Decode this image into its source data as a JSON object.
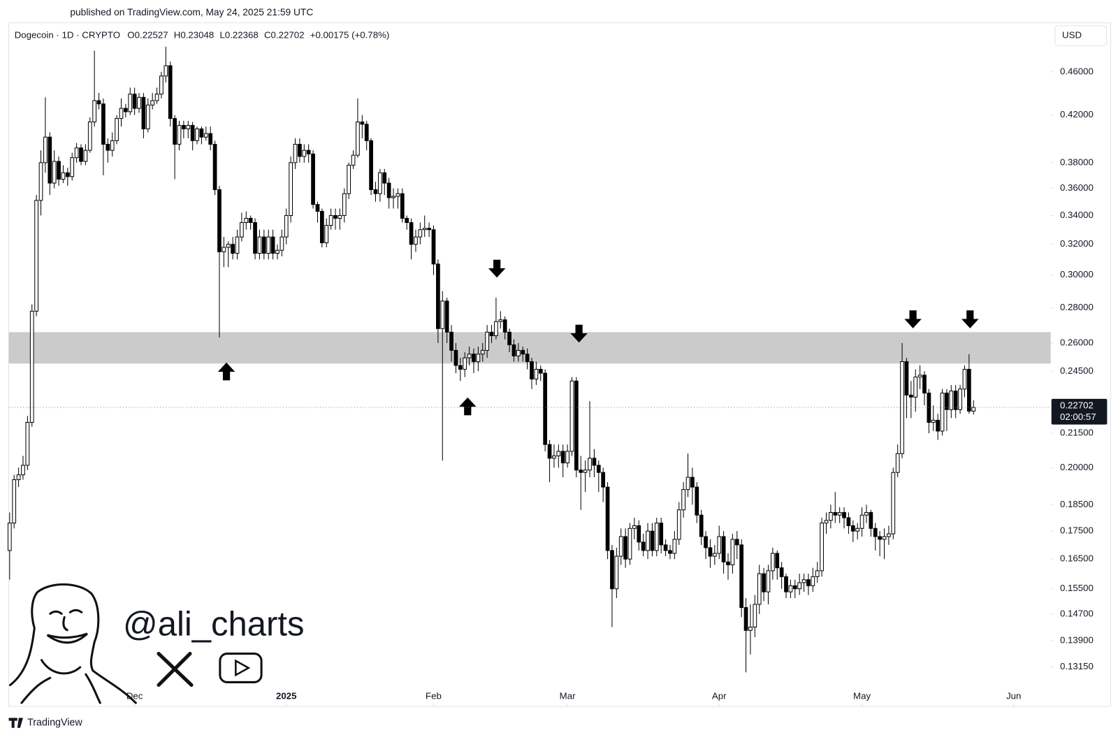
{
  "header": {
    "published": "published on TradingView.com, May 24, 2025 21:59 UTC"
  },
  "branding": {
    "logo_text": "TradingView",
    "watermark": "@ali_charts"
  },
  "chart_data": {
    "type": "candlestick",
    "title": "Dogecoin · 1D · CRYPTO",
    "ohlc_labels": [
      "O0.22527",
      "H0.23048",
      "L0.22368",
      "C0.22702",
      "+0.00175 (+0.78%)"
    ],
    "currency": "USD",
    "last_price_label": "0.22702",
    "countdown": "02:00:57",
    "log_scale": true,
    "grid": false,
    "up_color": "#ffffff",
    "down_color": "#000000",
    "zone_color": "#c8c8c8",
    "zone": {
      "low": 0.249,
      "high": 0.266
    },
    "xlim": [
      -0.2,
      233.3
    ],
    "xticks": [
      {
        "value": 28,
        "label": "Dec"
      },
      {
        "value": 62,
        "label": "2025"
      },
      {
        "value": 95,
        "label": "Feb"
      },
      {
        "value": 125,
        "label": "Mar"
      },
      {
        "value": 159,
        "label": "Apr"
      },
      {
        "value": 191,
        "label": "May"
      },
      {
        "value": 225,
        "label": "Jun"
      }
    ],
    "ylim": [
      0.121,
      0.51
    ],
    "yticks": [
      {
        "value": 0.46,
        "label": "0.46000"
      },
      {
        "value": 0.42,
        "label": "0.42000"
      },
      {
        "value": 0.38,
        "label": "0.38000"
      },
      {
        "value": 0.36,
        "label": "0.36000"
      },
      {
        "value": 0.34,
        "label": "0.34000"
      },
      {
        "value": 0.32,
        "label": "0.32000"
      },
      {
        "value": 0.3,
        "label": "0.30000"
      },
      {
        "value": 0.28,
        "label": "0.28000"
      },
      {
        "value": 0.26,
        "label": "0.26000"
      },
      {
        "value": 0.245,
        "label": "0.24500"
      },
      {
        "value": 0.215,
        "label": "0.21500"
      },
      {
        "value": 0.2,
        "label": "0.20000"
      },
      {
        "value": 0.185,
        "label": "0.18500"
      },
      {
        "value": 0.175,
        "label": "0.17500"
      },
      {
        "value": 0.165,
        "label": "0.16500"
      },
      {
        "value": 0.155,
        "label": "0.15500"
      },
      {
        "value": 0.147,
        "label": "0.14700"
      },
      {
        "value": 0.139,
        "label": "0.13900"
      },
      {
        "value": 0.1315,
        "label": "0.13150"
      }
    ],
    "ohlc": [
      [
        0.168,
        0.182,
        0.158,
        0.178
      ],
      [
        0.178,
        0.197,
        0.176,
        0.195
      ],
      [
        0.195,
        0.2,
        0.192,
        0.197
      ],
      [
        0.197,
        0.205,
        0.195,
        0.201
      ],
      [
        0.201,
        0.223,
        0.199,
        0.22
      ],
      [
        0.22,
        0.282,
        0.218,
        0.278
      ],
      [
        0.278,
        0.355,
        0.275,
        0.351
      ],
      [
        0.351,
        0.39,
        0.34,
        0.38
      ],
      [
        0.38,
        0.436,
        0.372,
        0.401
      ],
      [
        0.401,
        0.405,
        0.355,
        0.364
      ],
      [
        0.364,
        0.39,
        0.36,
        0.381
      ],
      [
        0.381,
        0.385,
        0.362,
        0.367
      ],
      [
        0.367,
        0.378,
        0.364,
        0.372
      ],
      [
        0.372,
        0.376,
        0.362,
        0.369
      ],
      [
        0.369,
        0.388,
        0.366,
        0.384
      ],
      [
        0.384,
        0.396,
        0.38,
        0.392
      ],
      [
        0.392,
        0.395,
        0.378,
        0.381
      ],
      [
        0.381,
        0.395,
        0.378,
        0.39
      ],
      [
        0.39,
        0.418,
        0.388,
        0.414
      ],
      [
        0.414,
        0.481,
        0.41,
        0.433
      ],
      [
        0.433,
        0.44,
        0.425,
        0.43
      ],
      [
        0.43,
        0.435,
        0.37,
        0.395
      ],
      [
        0.395,
        0.4,
        0.38,
        0.39
      ],
      [
        0.39,
        0.405,
        0.385,
        0.398
      ],
      [
        0.398,
        0.42,
        0.395,
        0.417
      ],
      [
        0.417,
        0.435,
        0.41,
        0.426
      ],
      [
        0.426,
        0.43,
        0.418,
        0.423
      ],
      [
        0.423,
        0.445,
        0.42,
        0.439
      ],
      [
        0.439,
        0.445,
        0.42,
        0.426
      ],
      [
        0.426,
        0.44,
        0.422,
        0.436
      ],
      [
        0.436,
        0.44,
        0.4,
        0.408
      ],
      [
        0.408,
        0.435,
        0.405,
        0.429
      ],
      [
        0.429,
        0.44,
        0.425,
        0.433
      ],
      [
        0.433,
        0.445,
        0.43,
        0.439
      ],
      [
        0.439,
        0.46,
        0.435,
        0.456
      ],
      [
        0.456,
        0.485,
        0.45,
        0.466
      ],
      [
        0.466,
        0.47,
        0.41,
        0.417
      ],
      [
        0.417,
        0.42,
        0.367,
        0.395
      ],
      [
        0.395,
        0.415,
        0.39,
        0.411
      ],
      [
        0.411,
        0.415,
        0.4,
        0.408
      ],
      [
        0.408,
        0.415,
        0.4,
        0.411
      ],
      [
        0.411,
        0.414,
        0.39,
        0.398
      ],
      [
        0.398,
        0.41,
        0.395,
        0.408
      ],
      [
        0.408,
        0.41,
        0.395,
        0.401
      ],
      [
        0.401,
        0.41,
        0.398,
        0.404
      ],
      [
        0.404,
        0.41,
        0.39,
        0.395
      ],
      [
        0.395,
        0.398,
        0.355,
        0.359
      ],
      [
        0.359,
        0.362,
        0.263,
        0.315
      ],
      [
        0.315,
        0.325,
        0.305,
        0.318
      ],
      [
        0.318,
        0.322,
        0.305,
        0.32
      ],
      [
        0.32,
        0.325,
        0.31,
        0.314
      ],
      [
        0.314,
        0.33,
        0.31,
        0.325
      ],
      [
        0.325,
        0.342,
        0.322,
        0.335
      ],
      [
        0.335,
        0.343,
        0.33,
        0.338
      ],
      [
        0.338,
        0.34,
        0.33,
        0.335
      ],
      [
        0.335,
        0.338,
        0.31,
        0.314
      ],
      [
        0.314,
        0.33,
        0.31,
        0.325
      ],
      [
        0.325,
        0.33,
        0.31,
        0.314
      ],
      [
        0.314,
        0.33,
        0.31,
        0.325
      ],
      [
        0.325,
        0.33,
        0.31,
        0.314
      ],
      [
        0.314,
        0.32,
        0.31,
        0.316
      ],
      [
        0.316,
        0.33,
        0.312,
        0.325
      ],
      [
        0.325,
        0.345,
        0.32,
        0.34
      ],
      [
        0.34,
        0.385,
        0.335,
        0.38
      ],
      [
        0.38,
        0.4,
        0.375,
        0.395
      ],
      [
        0.395,
        0.4,
        0.38,
        0.385
      ],
      [
        0.385,
        0.395,
        0.38,
        0.39
      ],
      [
        0.39,
        0.395,
        0.38,
        0.387
      ],
      [
        0.387,
        0.39,
        0.345,
        0.348
      ],
      [
        0.348,
        0.35,
        0.335,
        0.343
      ],
      [
        0.343,
        0.345,
        0.318,
        0.321
      ],
      [
        0.321,
        0.338,
        0.318,
        0.333
      ],
      [
        0.333,
        0.345,
        0.33,
        0.34
      ],
      [
        0.34,
        0.345,
        0.33,
        0.338
      ],
      [
        0.338,
        0.345,
        0.33,
        0.34
      ],
      [
        0.34,
        0.36,
        0.335,
        0.356
      ],
      [
        0.356,
        0.38,
        0.352,
        0.378
      ],
      [
        0.378,
        0.39,
        0.375,
        0.386
      ],
      [
        0.386,
        0.435,
        0.384,
        0.414
      ],
      [
        0.414,
        0.42,
        0.4,
        0.412
      ],
      [
        0.412,
        0.415,
        0.39,
        0.398
      ],
      [
        0.398,
        0.4,
        0.355,
        0.359
      ],
      [
        0.359,
        0.365,
        0.35,
        0.356
      ],
      [
        0.356,
        0.375,
        0.35,
        0.372
      ],
      [
        0.372,
        0.375,
        0.355,
        0.364
      ],
      [
        0.364,
        0.368,
        0.345,
        0.353
      ],
      [
        0.353,
        0.36,
        0.345,
        0.354
      ],
      [
        0.354,
        0.36,
        0.345,
        0.356
      ],
      [
        0.356,
        0.36,
        0.335,
        0.338
      ],
      [
        0.338,
        0.34,
        0.33,
        0.335
      ],
      [
        0.335,
        0.338,
        0.31,
        0.32
      ],
      [
        0.32,
        0.33,
        0.315,
        0.325
      ],
      [
        0.325,
        0.335,
        0.32,
        0.33
      ],
      [
        0.33,
        0.34,
        0.325,
        0.331
      ],
      [
        0.331,
        0.335,
        0.325,
        0.33
      ],
      [
        0.33,
        0.333,
        0.3,
        0.307
      ],
      [
        0.307,
        0.31,
        0.26,
        0.268
      ],
      [
        0.268,
        0.29,
        0.203,
        0.284
      ],
      [
        0.284,
        0.286,
        0.26,
        0.266
      ],
      [
        0.266,
        0.27,
        0.25,
        0.256
      ],
      [
        0.256,
        0.26,
        0.244,
        0.248
      ],
      [
        0.248,
        0.252,
        0.24,
        0.246
      ],
      [
        0.246,
        0.255,
        0.242,
        0.252
      ],
      [
        0.252,
        0.258,
        0.248,
        0.254
      ],
      [
        0.254,
        0.257,
        0.244,
        0.25
      ],
      [
        0.25,
        0.258,
        0.245,
        0.254
      ],
      [
        0.254,
        0.26,
        0.25,
        0.256
      ],
      [
        0.256,
        0.27,
        0.252,
        0.266
      ],
      [
        0.266,
        0.27,
        0.26,
        0.264
      ],
      [
        0.264,
        0.286,
        0.262,
        0.272
      ],
      [
        0.272,
        0.278,
        0.268,
        0.273
      ],
      [
        0.273,
        0.275,
        0.262,
        0.266
      ],
      [
        0.266,
        0.268,
        0.255,
        0.259
      ],
      [
        0.259,
        0.262,
        0.25,
        0.253
      ],
      [
        0.253,
        0.26,
        0.25,
        0.256
      ],
      [
        0.256,
        0.258,
        0.25,
        0.254
      ],
      [
        0.254,
        0.257,
        0.246,
        0.25
      ],
      [
        0.25,
        0.252,
        0.236,
        0.241
      ],
      [
        0.241,
        0.25,
        0.238,
        0.246
      ],
      [
        0.246,
        0.248,
        0.24,
        0.244
      ],
      [
        0.244,
        0.246,
        0.207,
        0.21
      ],
      [
        0.21,
        0.212,
        0.194,
        0.204
      ],
      [
        0.204,
        0.21,
        0.2,
        0.205
      ],
      [
        0.205,
        0.21,
        0.2,
        0.207
      ],
      [
        0.207,
        0.21,
        0.196,
        0.202
      ],
      [
        0.202,
        0.21,
        0.2,
        0.207
      ],
      [
        0.207,
        0.242,
        0.205,
        0.24
      ],
      [
        0.24,
        0.242,
        0.196,
        0.199
      ],
      [
        0.199,
        0.205,
        0.183,
        0.198
      ],
      [
        0.198,
        0.203,
        0.19,
        0.199
      ],
      [
        0.199,
        0.23,
        0.196,
        0.204
      ],
      [
        0.204,
        0.208,
        0.196,
        0.201
      ],
      [
        0.201,
        0.203,
        0.19,
        0.198
      ],
      [
        0.198,
        0.2,
        0.186,
        0.192
      ],
      [
        0.192,
        0.194,
        0.165,
        0.168
      ],
      [
        0.168,
        0.17,
        0.143,
        0.155
      ],
      [
        0.155,
        0.169,
        0.152,
        0.166
      ],
      [
        0.166,
        0.176,
        0.163,
        0.173
      ],
      [
        0.173,
        0.176,
        0.162,
        0.165
      ],
      [
        0.165,
        0.178,
        0.163,
        0.176
      ],
      [
        0.176,
        0.18,
        0.172,
        0.177
      ],
      [
        0.177,
        0.179,
        0.168,
        0.171
      ],
      [
        0.171,
        0.174,
        0.166,
        0.168
      ],
      [
        0.168,
        0.178,
        0.165,
        0.175
      ],
      [
        0.175,
        0.178,
        0.166,
        0.168
      ],
      [
        0.168,
        0.18,
        0.166,
        0.178
      ],
      [
        0.178,
        0.18,
        0.167,
        0.17
      ],
      [
        0.17,
        0.172,
        0.166,
        0.168
      ],
      [
        0.168,
        0.17,
        0.165,
        0.167
      ],
      [
        0.167,
        0.175,
        0.165,
        0.172
      ],
      [
        0.172,
        0.186,
        0.17,
        0.183
      ],
      [
        0.183,
        0.194,
        0.18,
        0.191
      ],
      [
        0.191,
        0.206,
        0.188,
        0.196
      ],
      [
        0.196,
        0.2,
        0.185,
        0.192
      ],
      [
        0.192,
        0.194,
        0.178,
        0.181
      ],
      [
        0.181,
        0.183,
        0.17,
        0.173
      ],
      [
        0.173,
        0.175,
        0.165,
        0.169
      ],
      [
        0.169,
        0.172,
        0.162,
        0.166
      ],
      [
        0.166,
        0.17,
        0.163,
        0.167
      ],
      [
        0.167,
        0.177,
        0.165,
        0.173
      ],
      [
        0.173,
        0.175,
        0.16,
        0.164
      ],
      [
        0.164,
        0.167,
        0.158,
        0.163
      ],
      [
        0.163,
        0.174,
        0.16,
        0.172
      ],
      [
        0.172,
        0.175,
        0.165,
        0.17
      ],
      [
        0.17,
        0.172,
        0.146,
        0.149
      ],
      [
        0.149,
        0.152,
        0.13,
        0.142
      ],
      [
        0.142,
        0.15,
        0.135,
        0.143
      ],
      [
        0.143,
        0.153,
        0.14,
        0.15
      ],
      [
        0.15,
        0.163,
        0.147,
        0.16
      ],
      [
        0.16,
        0.162,
        0.151,
        0.154
      ],
      [
        0.154,
        0.163,
        0.15,
        0.161
      ],
      [
        0.161,
        0.169,
        0.158,
        0.167
      ],
      [
        0.167,
        0.168,
        0.158,
        0.162
      ],
      [
        0.162,
        0.164,
        0.155,
        0.159
      ],
      [
        0.159,
        0.16,
        0.152,
        0.154
      ],
      [
        0.154,
        0.158,
        0.152,
        0.156
      ],
      [
        0.156,
        0.158,
        0.152,
        0.155
      ],
      [
        0.155,
        0.16,
        0.153,
        0.157
      ],
      [
        0.157,
        0.16,
        0.154,
        0.158
      ],
      [
        0.158,
        0.16,
        0.153,
        0.156
      ],
      [
        0.156,
        0.162,
        0.154,
        0.159
      ],
      [
        0.159,
        0.164,
        0.157,
        0.161
      ],
      [
        0.161,
        0.18,
        0.159,
        0.178
      ],
      [
        0.178,
        0.182,
        0.174,
        0.179
      ],
      [
        0.179,
        0.185,
        0.176,
        0.182
      ],
      [
        0.182,
        0.19,
        0.178,
        0.181
      ],
      [
        0.181,
        0.184,
        0.178,
        0.182
      ],
      [
        0.182,
        0.184,
        0.176,
        0.18
      ],
      [
        0.18,
        0.182,
        0.174,
        0.177
      ],
      [
        0.177,
        0.179,
        0.171,
        0.175
      ],
      [
        0.175,
        0.178,
        0.172,
        0.176
      ],
      [
        0.176,
        0.184,
        0.173,
        0.181
      ],
      [
        0.181,
        0.185,
        0.178,
        0.182
      ],
      [
        0.182,
        0.183,
        0.173,
        0.176
      ],
      [
        0.176,
        0.178,
        0.168,
        0.173
      ],
      [
        0.173,
        0.175,
        0.166,
        0.172
      ],
      [
        0.172,
        0.176,
        0.165,
        0.173
      ],
      [
        0.173,
        0.177,
        0.17,
        0.174
      ],
      [
        0.174,
        0.2,
        0.172,
        0.198
      ],
      [
        0.198,
        0.21,
        0.196,
        0.206
      ],
      [
        0.206,
        0.26,
        0.204,
        0.25
      ],
      [
        0.25,
        0.252,
        0.222,
        0.233
      ],
      [
        0.233,
        0.24,
        0.222,
        0.232
      ],
      [
        0.232,
        0.246,
        0.225,
        0.242
      ],
      [
        0.242,
        0.248,
        0.236,
        0.243
      ],
      [
        0.243,
        0.245,
        0.228,
        0.234
      ],
      [
        0.234,
        0.236,
        0.215,
        0.22
      ],
      [
        0.22,
        0.228,
        0.216,
        0.221
      ],
      [
        0.221,
        0.224,
        0.212,
        0.216
      ],
      [
        0.216,
        0.236,
        0.214,
        0.234
      ],
      [
        0.234,
        0.236,
        0.216,
        0.226
      ],
      [
        0.226,
        0.238,
        0.222,
        0.235
      ],
      [
        0.235,
        0.238,
        0.222,
        0.226
      ],
      [
        0.226,
        0.238,
        0.224,
        0.236
      ],
      [
        0.236,
        0.248,
        0.232,
        0.246
      ],
      [
        0.246,
        0.254,
        0.224,
        0.22527
      ],
      [
        0.22527,
        0.23048,
        0.22368,
        0.22702
      ]
    ]
  }
}
